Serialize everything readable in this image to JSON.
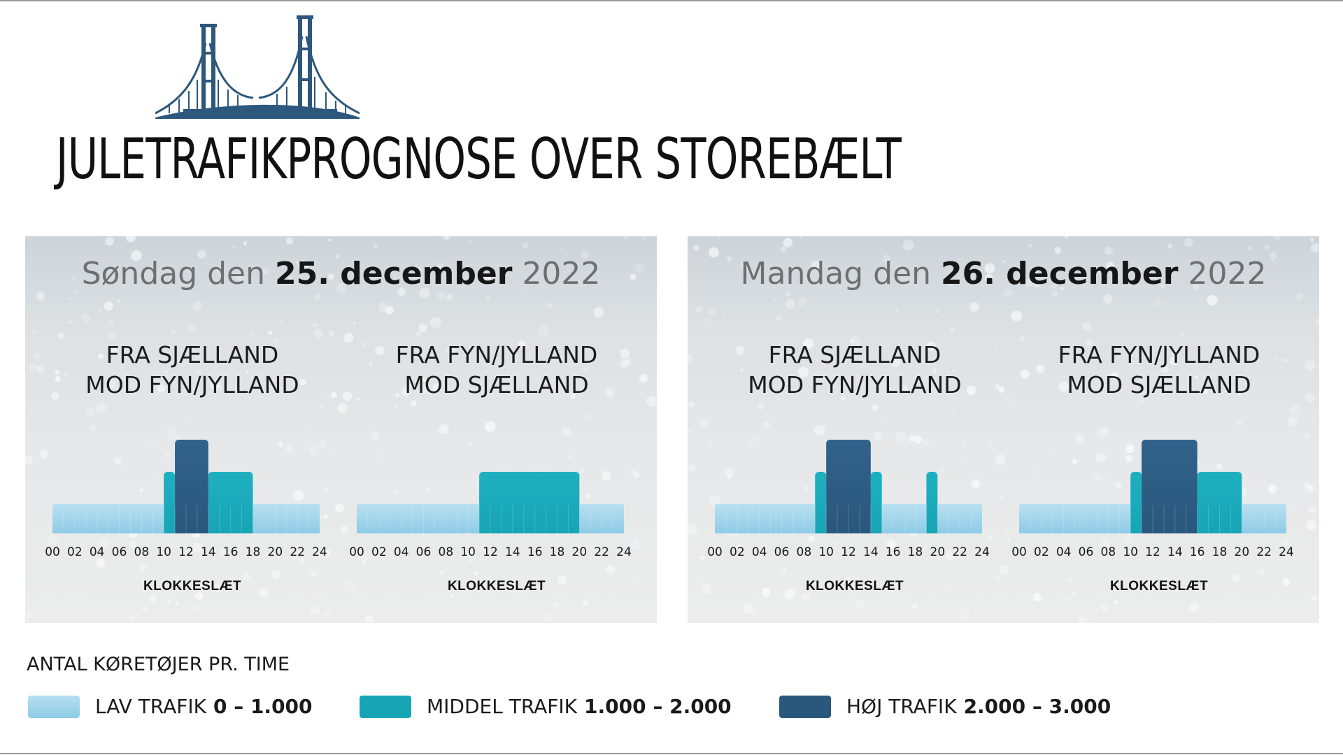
{
  "title": "JULETRAFIKPROGNOSE OVER STOREBÆLT",
  "logo_icon": "bridge-icon",
  "colors": {
    "low": "#8ecbe6",
    "medium": "#17a5b6",
    "high": "#2a577c",
    "background": "#ffffff"
  },
  "panels": [
    {
      "date_prefix": "Søndag den",
      "date_bold": "25. december",
      "date_year": "2022",
      "charts": [
        {
          "title_line1": "FRA SJÆLLAND",
          "title_line2": "MOD FYN/JYLLAND",
          "xlabel": "KLOKKESLÆT",
          "ticks": [
            "00",
            "02",
            "04",
            "06",
            "08",
            "10",
            "12",
            "14",
            "16",
            "18",
            "20",
            "22",
            "24"
          ]
        },
        {
          "title_line1": "FRA FYN/JYLLAND",
          "title_line2": "MOD SJÆLLAND",
          "xlabel": "KLOKKESLÆT",
          "ticks": [
            "00",
            "02",
            "04",
            "06",
            "08",
            "10",
            "12",
            "14",
            "16",
            "18",
            "20",
            "22",
            "24"
          ]
        }
      ]
    },
    {
      "date_prefix": "Mandag den",
      "date_bold": "26. december",
      "date_year": "2022",
      "charts": [
        {
          "title_line1": "FRA SJÆLLAND",
          "title_line2": "MOD FYN/JYLLAND",
          "xlabel": "KLOKKESLÆT",
          "ticks": [
            "00",
            "02",
            "04",
            "06",
            "08",
            "10",
            "12",
            "14",
            "16",
            "18",
            "20",
            "22",
            "24"
          ]
        },
        {
          "title_line1": "FRA FYN/JYLLAND",
          "title_line2": "MOD SJÆLLAND",
          "xlabel": "KLOKKESLÆT",
          "ticks": [
            "00",
            "02",
            "04",
            "06",
            "08",
            "10",
            "12",
            "14",
            "16",
            "18",
            "20",
            "22",
            "24"
          ]
        }
      ]
    }
  ],
  "legend": {
    "title": "ANTAL KØRETØJER PR. TIME",
    "items": [
      {
        "level": "low",
        "label": "LAV TRAFIK",
        "range": "0 – 1.000"
      },
      {
        "level": "medium",
        "label": "MIDDEL TRAFIK",
        "range": "1.000 – 2.000"
      },
      {
        "level": "high",
        "label": "HØJ TRAFIK",
        "range": "2.000 – 3.000"
      }
    ]
  },
  "chart_data": [
    {
      "type": "bar",
      "title": "Søndag den 25. december 2022 — FRA SJÆLLAND MOD FYN/JYLLAND",
      "xlabel": "KLOKKESLÆT",
      "xlim": [
        0,
        24
      ],
      "levels": [
        "LAV TRAFIK",
        "MIDDEL TRAFIK",
        "HØJ TRAFIK"
      ],
      "segments": [
        {
          "start": 0,
          "end": 10,
          "level": "low"
        },
        {
          "start": 10,
          "end": 11,
          "level": "medium"
        },
        {
          "start": 11,
          "end": 14,
          "level": "high"
        },
        {
          "start": 14,
          "end": 18,
          "level": "medium"
        },
        {
          "start": 18,
          "end": 24,
          "level": "low"
        }
      ]
    },
    {
      "type": "bar",
      "title": "Søndag den 25. december 2022 — FRA FYN/JYLLAND MOD SJÆLLAND",
      "xlabel": "KLOKKESLÆT",
      "xlim": [
        0,
        24
      ],
      "levels": [
        "LAV TRAFIK",
        "MIDDEL TRAFIK",
        "HØJ TRAFIK"
      ],
      "segments": [
        {
          "start": 0,
          "end": 11,
          "level": "low"
        },
        {
          "start": 11,
          "end": 20,
          "level": "medium"
        },
        {
          "start": 20,
          "end": 24,
          "level": "low"
        }
      ]
    },
    {
      "type": "bar",
      "title": "Mandag den 26. december 2022 — FRA SJÆLLAND MOD FYN/JYLLAND",
      "xlabel": "KLOKKESLÆT",
      "xlim": [
        0,
        24
      ],
      "levels": [
        "LAV TRAFIK",
        "MIDDEL TRAFIK",
        "HØJ TRAFIK"
      ],
      "segments": [
        {
          "start": 0,
          "end": 9,
          "level": "low"
        },
        {
          "start": 9,
          "end": 10,
          "level": "medium"
        },
        {
          "start": 10,
          "end": 14,
          "level": "high"
        },
        {
          "start": 14,
          "end": 15,
          "level": "medium"
        },
        {
          "start": 15,
          "end": 19,
          "level": "low"
        },
        {
          "start": 19,
          "end": 20,
          "level": "medium"
        },
        {
          "start": 20,
          "end": 24,
          "level": "low"
        }
      ]
    },
    {
      "type": "bar",
      "title": "Mandag den 26. december 2022 — FRA FYN/JYLLAND MOD SJÆLLAND",
      "xlabel": "KLOKKESLÆT",
      "xlim": [
        0,
        24
      ],
      "levels": [
        "LAV TRAFIK",
        "MIDDEL TRAFIK",
        "HØJ TRAFIK"
      ],
      "segments": [
        {
          "start": 0,
          "end": 10,
          "level": "low"
        },
        {
          "start": 10,
          "end": 11,
          "level": "medium"
        },
        {
          "start": 11,
          "end": 16,
          "level": "high"
        },
        {
          "start": 16,
          "end": 20,
          "level": "medium"
        },
        {
          "start": 20,
          "end": 24,
          "level": "low"
        }
      ]
    }
  ]
}
